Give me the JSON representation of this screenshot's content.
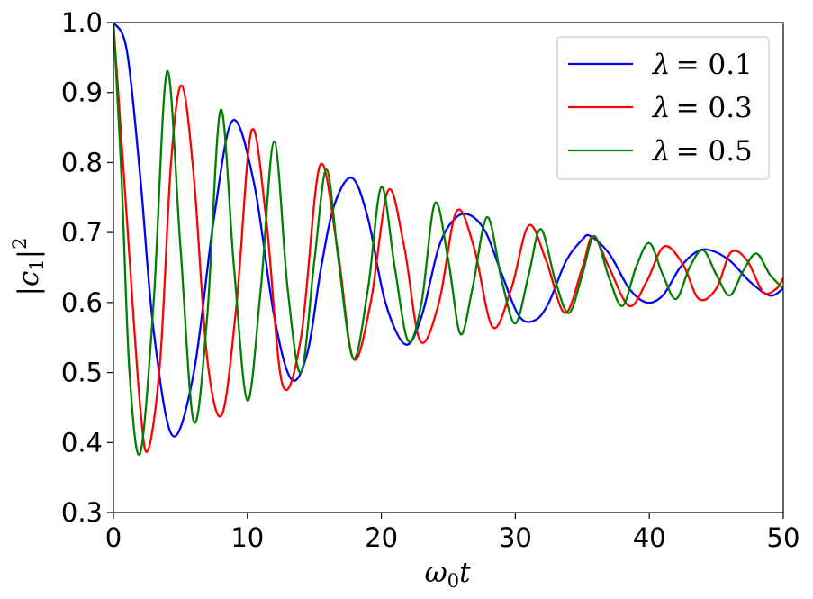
{
  "chart_data": {
    "type": "line",
    "xlabel": "ω₀t",
    "ylabel": "|c₁|²",
    "xlim": [
      0,
      50
    ],
    "ylim": [
      0.3,
      1.0
    ],
    "xticks": [
      "0",
      "10",
      "20",
      "30",
      "40",
      "50"
    ],
    "yticks": [
      "0.3",
      "0.4",
      "0.5",
      "0.6",
      "0.7",
      "0.8",
      "0.9",
      "1.0"
    ],
    "grid": false,
    "legend_position": "top-right",
    "series": [
      {
        "name": "λ = 0.1",
        "lambda_symbol": "λ",
        "lambda_value": "= 0.1",
        "color": "#0000ff",
        "x": [
          0,
          1,
          2,
          3,
          4.4,
          6,
          7.5,
          8.9,
          10.5,
          12,
          13.3,
          14.5,
          15.5,
          16.5,
          17.8,
          19,
          20.3,
          21.8,
          23,
          24.3,
          25.5,
          26.6,
          27.8,
          29,
          30.3,
          31.5,
          32.5,
          33.8,
          35,
          35.6,
          37,
          38.5,
          39.8,
          41,
          42.3,
          43.5,
          44.5,
          46,
          47.5,
          49,
          50
        ],
        "y": [
          1.0,
          0.96,
          0.78,
          0.56,
          0.41,
          0.5,
          0.72,
          0.86,
          0.77,
          0.58,
          0.49,
          0.53,
          0.65,
          0.74,
          0.778,
          0.72,
          0.6,
          0.54,
          0.58,
          0.68,
          0.72,
          0.725,
          0.7,
          0.64,
          0.58,
          0.575,
          0.6,
          0.66,
          0.69,
          0.695,
          0.67,
          0.62,
          0.6,
          0.61,
          0.65,
          0.672,
          0.675,
          0.66,
          0.63,
          0.61,
          0.62
        ]
      },
      {
        "name": "λ = 0.3",
        "lambda_symbol": "λ",
        "lambda_value": "= 0.3",
        "color": "#ff0000",
        "x": [
          0,
          1,
          2,
          2.6,
          3.5,
          4.3,
          5.1,
          6,
          7,
          8.1,
          9.2,
          10.3,
          11.4,
          12.6,
          14,
          15.4,
          16.7,
          17.9,
          19.2,
          20.5,
          21.7,
          22.9,
          24.3,
          25.6,
          26.9,
          28.3,
          29.7,
          31,
          32.3,
          33.7,
          35,
          35.8,
          37,
          38.5,
          39.8,
          41.1,
          42.5,
          43.7,
          45,
          46.1,
          47.3,
          48.5,
          49.5,
          50
        ],
        "y": [
          1.0,
          0.72,
          0.45,
          0.39,
          0.52,
          0.8,
          0.91,
          0.78,
          0.52,
          0.44,
          0.6,
          0.845,
          0.72,
          0.484,
          0.55,
          0.795,
          0.68,
          0.52,
          0.6,
          0.76,
          0.68,
          0.545,
          0.6,
          0.73,
          0.68,
          0.565,
          0.62,
          0.71,
          0.66,
          0.585,
          0.65,
          0.695,
          0.65,
          0.595,
          0.63,
          0.68,
          0.655,
          0.605,
          0.62,
          0.672,
          0.66,
          0.615,
          0.62,
          0.635
        ]
      },
      {
        "name": "λ = 0.5",
        "lambda_symbol": "λ",
        "lambda_value": "= 0.5",
        "color": "#008000",
        "x": [
          0,
          0.6,
          1.2,
          2,
          3,
          4,
          5,
          6,
          7,
          8,
          9,
          10,
          11,
          12,
          13,
          14,
          15,
          15.9,
          16.8,
          17.9,
          19,
          20,
          21,
          22,
          23,
          24,
          25,
          25.9,
          26.8,
          27.9,
          29,
          30,
          31,
          31.9,
          33,
          34,
          35,
          35.9,
          37,
          38,
          39,
          40,
          41,
          42,
          43,
          44,
          45,
          46,
          47,
          48,
          49,
          50
        ],
        "y": [
          1.0,
          0.78,
          0.5,
          0.385,
          0.6,
          0.93,
          0.68,
          0.43,
          0.58,
          0.875,
          0.65,
          0.46,
          0.62,
          0.83,
          0.62,
          0.5,
          0.66,
          0.79,
          0.66,
          0.52,
          0.62,
          0.765,
          0.65,
          0.545,
          0.6,
          0.742,
          0.66,
          0.555,
          0.62,
          0.722,
          0.63,
          0.57,
          0.64,
          0.705,
          0.63,
          0.585,
          0.64,
          0.695,
          0.635,
          0.595,
          0.65,
          0.685,
          0.64,
          0.605,
          0.65,
          0.675,
          0.64,
          0.61,
          0.645,
          0.67,
          0.64,
          0.62
        ]
      }
    ]
  }
}
